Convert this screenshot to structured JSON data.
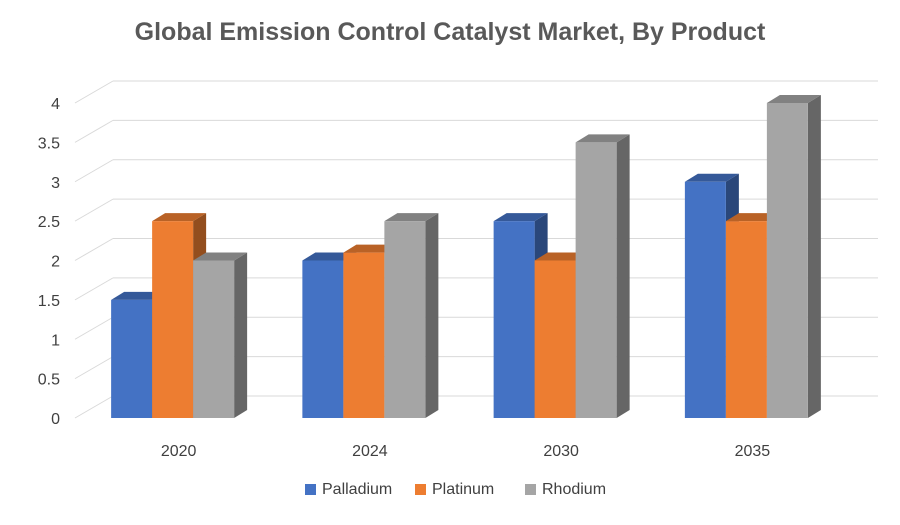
{
  "chart_data": {
    "type": "bar",
    "title": "Global Emission Control Catalyst Market, By Product",
    "categories": [
      "2020",
      "2024",
      "2030",
      "2035"
    ],
    "series": [
      {
        "name": "Palladium",
        "values": [
          1.5,
          2.0,
          2.5,
          3.0
        ],
        "color": "#4472C4"
      },
      {
        "name": "Platinum",
        "values": [
          2.5,
          2.1,
          2.0,
          2.5
        ],
        "color": "#ED7D31"
      },
      {
        "name": "Rhodium",
        "values": [
          2.0,
          2.5,
          3.5,
          4.0
        ],
        "color": "#A5A5A5"
      }
    ],
    "yticks": [
      "0",
      "0.5",
      "1",
      "1.5",
      "2",
      "2.5",
      "3",
      "3.5",
      "4"
    ],
    "ylim": [
      0,
      4
    ],
    "xlabel": "",
    "ylabel": "",
    "grid": true,
    "legend": "bottom",
    "style": "3d-clustered-column"
  }
}
